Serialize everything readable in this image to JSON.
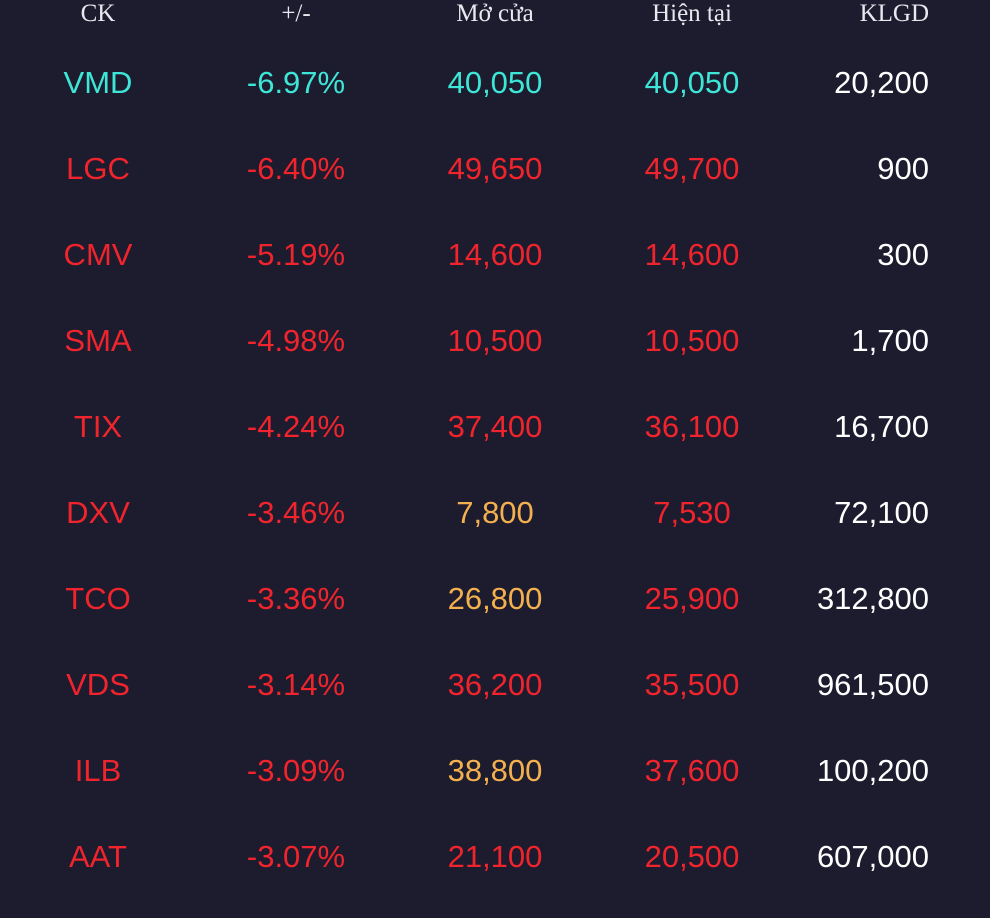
{
  "header": {
    "symbol": "CK",
    "change": "+/-",
    "open": "Mở cửa",
    "current": "Hiện tại",
    "volume": "KLGD"
  },
  "colors": {
    "background": "#1d1b2e",
    "floor": "#3de6d6",
    "down": "#f0242c",
    "reference": "#f3b04f",
    "neutral": "#ffffff"
  },
  "rows": [
    {
      "symbol": "VMD",
      "change": "-6.97%",
      "open": "40,050",
      "current": "40,050",
      "volume": "20,200",
      "symbol_color": "cyan",
      "change_color": "cyan",
      "open_color": "cyan",
      "current_color": "cyan"
    },
    {
      "symbol": "LGC",
      "change": "-6.40%",
      "open": "49,650",
      "current": "49,700",
      "volume": "900",
      "symbol_color": "red",
      "change_color": "red",
      "open_color": "red",
      "current_color": "red"
    },
    {
      "symbol": "CMV",
      "change": "-5.19%",
      "open": "14,600",
      "current": "14,600",
      "volume": "300",
      "symbol_color": "red",
      "change_color": "red",
      "open_color": "red",
      "current_color": "red"
    },
    {
      "symbol": "SMA",
      "change": "-4.98%",
      "open": "10,500",
      "current": "10,500",
      "volume": "1,700",
      "symbol_color": "red",
      "change_color": "red",
      "open_color": "red",
      "current_color": "red"
    },
    {
      "symbol": "TIX",
      "change": "-4.24%",
      "open": "37,400",
      "current": "36,100",
      "volume": "16,700",
      "symbol_color": "red",
      "change_color": "red",
      "open_color": "red",
      "current_color": "red"
    },
    {
      "symbol": "DXV",
      "change": "-3.46%",
      "open": "7,800",
      "current": "7,530",
      "volume": "72,100",
      "symbol_color": "red",
      "change_color": "red",
      "open_color": "yellow",
      "current_color": "red"
    },
    {
      "symbol": "TCO",
      "change": "-3.36%",
      "open": "26,800",
      "current": "25,900",
      "volume": "312,800",
      "symbol_color": "red",
      "change_color": "red",
      "open_color": "yellow",
      "current_color": "red"
    },
    {
      "symbol": "VDS",
      "change": "-3.14%",
      "open": "36,200",
      "current": "35,500",
      "volume": "961,500",
      "symbol_color": "red",
      "change_color": "red",
      "open_color": "red",
      "current_color": "red"
    },
    {
      "symbol": "ILB",
      "change": "-3.09%",
      "open": "38,800",
      "current": "37,600",
      "volume": "100,200",
      "symbol_color": "red",
      "change_color": "red",
      "open_color": "yellow",
      "current_color": "red"
    },
    {
      "symbol": "AAT",
      "change": "-3.07%",
      "open": "21,100",
      "current": "20,500",
      "volume": "607,000",
      "symbol_color": "red",
      "change_color": "red",
      "open_color": "red",
      "current_color": "red"
    }
  ]
}
